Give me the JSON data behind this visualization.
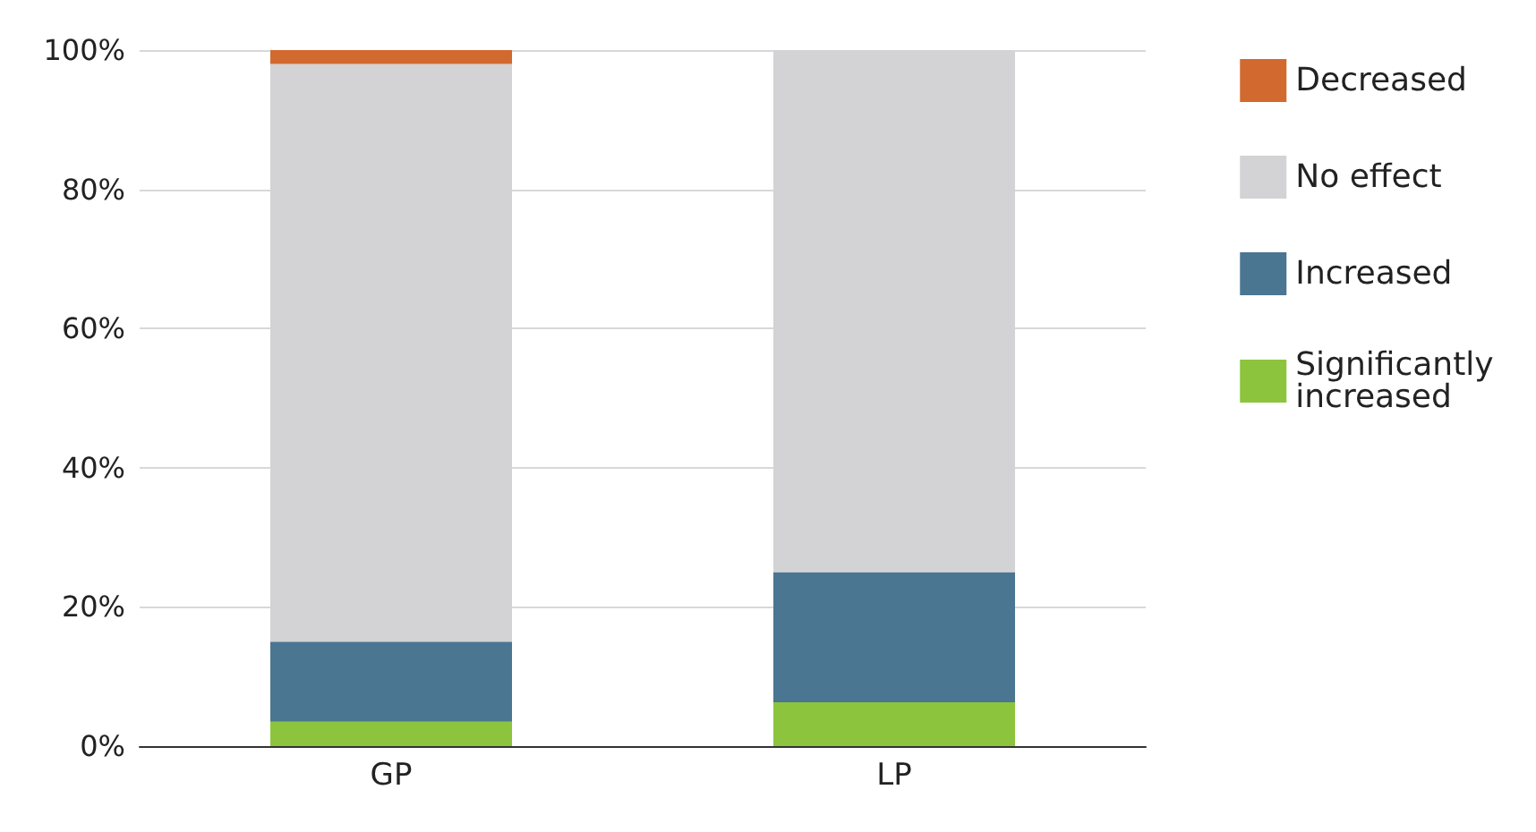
{
  "chart_data": {
    "type": "bar",
    "stacked": true,
    "categories": [
      "GP",
      "LP"
    ],
    "series": [
      {
        "name": "Significantly increased",
        "color": "#8cc43d",
        "values": [
          3.5,
          6.3
        ]
      },
      {
        "name": "Increased",
        "color": "#4a7691",
        "values": [
          11.5,
          18.7
        ]
      },
      {
        "name": "No effect",
        "color": "#d3d3d5",
        "values": [
          83,
          75
        ]
      },
      {
        "name": "Decreased",
        "color": "#d2692f",
        "values": [
          2,
          0
        ]
      }
    ],
    "ylim": [
      0,
      100
    ],
    "yticks": [
      {
        "value": 0,
        "label": "0%"
      },
      {
        "value": 20,
        "label": "20%"
      },
      {
        "value": 40,
        "label": "40%"
      },
      {
        "value": 60,
        "label": "60%"
      },
      {
        "value": 80,
        "label": "80%"
      },
      {
        "value": 100,
        "label": "100%"
      }
    ],
    "grid": "y",
    "legend": "right"
  }
}
